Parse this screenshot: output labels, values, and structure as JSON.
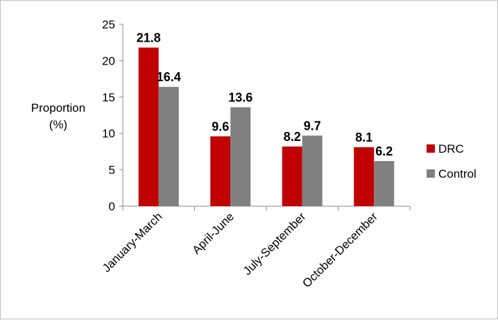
{
  "chart_data": {
    "type": "bar",
    "categories": [
      "January-March",
      "April-June",
      "July-September",
      "October-December"
    ],
    "series": [
      {
        "name": "DRC",
        "values": [
          21.8,
          9.6,
          8.2,
          8.1
        ],
        "color": "#c00000"
      },
      {
        "name": "Control",
        "values": [
          16.4,
          13.6,
          9.7,
          6.2
        ],
        "color": "#808080"
      }
    ],
    "title": "",
    "xlabel": "",
    "ylabel_line1": "Proportion",
    "ylabel_line2": "(%)",
    "ylim": [
      0,
      25
    ],
    "yticks": [
      0,
      5,
      10,
      15,
      20,
      25
    ],
    "data_labels": [
      [
        "21.8",
        "9.6",
        "8.2",
        "8.1"
      ],
      [
        "16.4",
        "13.6",
        "9.7",
        "6.2"
      ]
    ],
    "grid": false,
    "legend_position": "right"
  }
}
